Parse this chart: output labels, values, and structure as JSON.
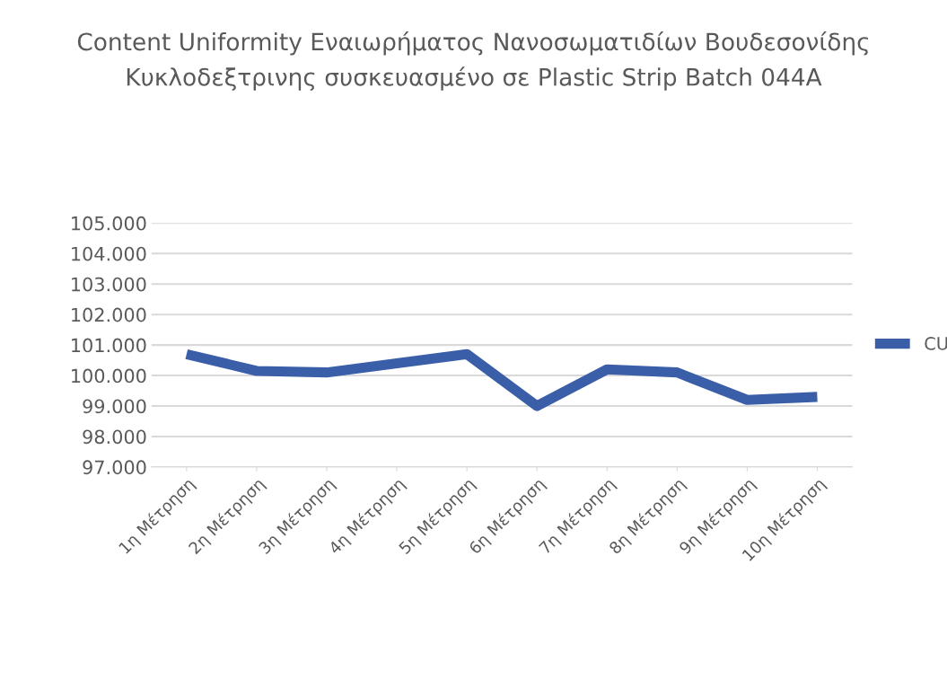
{
  "chart_data": {
    "type": "line",
    "title": "Content Uniformity Εναιωρήματος Νανοσωματιδίων Βουδεσονίδης Κυκλοδεξτρινης συσκευασμένο σε Plastic Strip Batch 044A",
    "categories": [
      "1η Μέτρηση",
      "2η Μέτρηση",
      "3η Μέτρηση",
      "4η Μέτρηση",
      "5η Μέτρηση",
      "6η Μέτρηση",
      "7η Μέτρηση",
      "8η Μέτρηση",
      "9η Μέτρηση",
      "10η Μέτρηση"
    ],
    "series": [
      {
        "name": "CU",
        "color": "#3a5ea8",
        "values": [
          100.7,
          100.15,
          100.1,
          100.4,
          100.7,
          99.0,
          100.2,
          100.1,
          99.2,
          99.3
        ]
      }
    ],
    "ylim": [
      97,
      105
    ],
    "yticks": [
      {
        "value": 97,
        "label": "97.000"
      },
      {
        "value": 98,
        "label": "98.000"
      },
      {
        "value": 99,
        "label": "99.000"
      },
      {
        "value": 100,
        "label": "100.000"
      },
      {
        "value": 101,
        "label": "101.000"
      },
      {
        "value": 102,
        "label": "102.000"
      },
      {
        "value": 103,
        "label": "103.000"
      },
      {
        "value": 104,
        "label": "104.000"
      },
      {
        "value": 105,
        "label": "105.000"
      }
    ],
    "grid": "y",
    "legend": "right",
    "marker": "none",
    "line_style": "solid"
  }
}
